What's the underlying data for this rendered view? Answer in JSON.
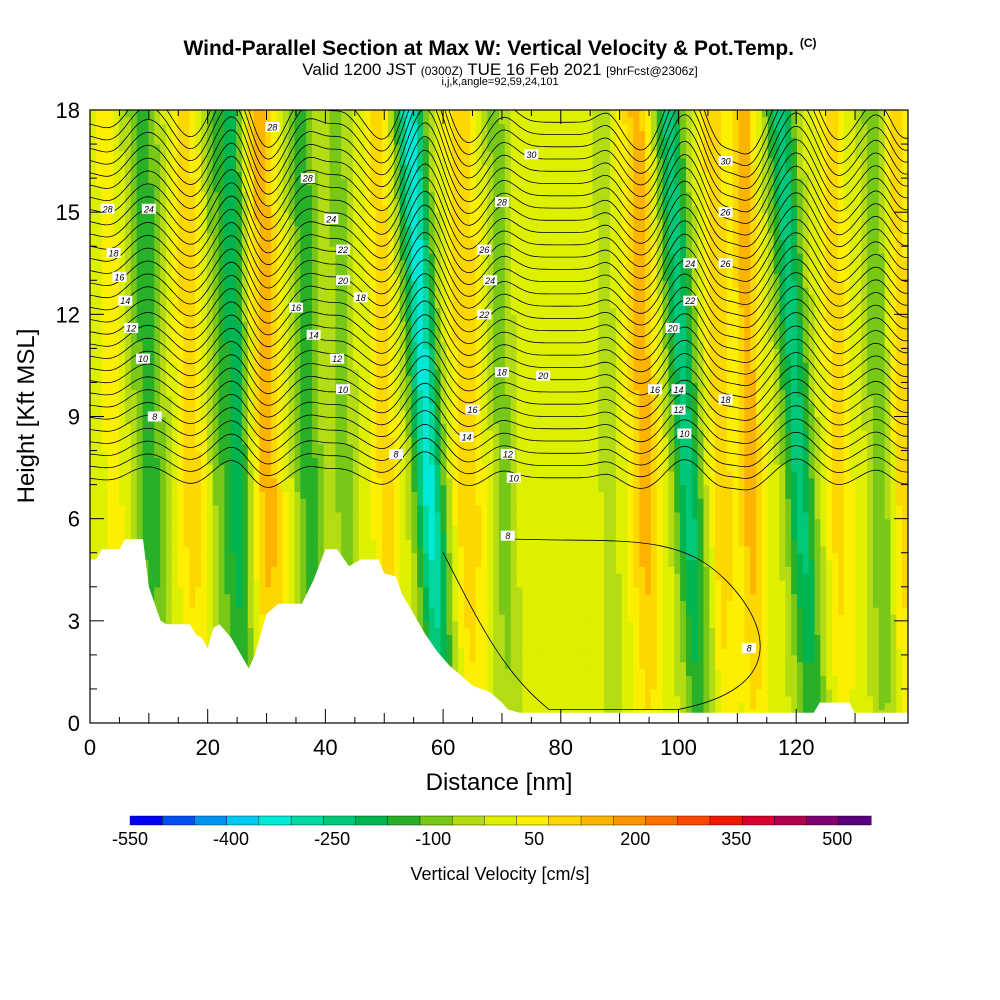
{
  "title": {
    "main": "Wind-Parallel Section at Max W: Vertical Velocity & Pot.Temp.",
    "copyright": "(C)",
    "valid": "Valid 1200 JST",
    "utc": "(0300Z)",
    "date": "TUE 16 Feb 2021",
    "forecast": "[9hrFcst@2306z]",
    "indices": "i,j,k,angle=92,59,24,101"
  },
  "chart_data": {
    "type": "heatmap",
    "xlabel": "Distance [nm]",
    "ylabel": "Height [Kft MSL]",
    "xlim": [
      0,
      139
    ],
    "ylim": [
      0,
      18
    ],
    "x_ticks": [
      0,
      20,
      40,
      60,
      80,
      100,
      120
    ],
    "y_ticks": [
      0,
      3,
      6,
      9,
      12,
      15,
      18
    ],
    "colorbar": {
      "title": "Vertical Velocity [cm/s]",
      "labels": [
        "-550",
        "-400",
        "-250",
        "-100",
        "50",
        "200",
        "350",
        "500"
      ],
      "levels": [
        -550,
        -500,
        -450,
        -400,
        -350,
        -300,
        -250,
        -200,
        -150,
        -100,
        -50,
        0,
        50,
        100,
        150,
        200,
        250,
        300,
        350,
        400,
        450,
        500,
        550
      ],
      "colors": [
        "#0000f5",
        "#0050f0",
        "#0090f0",
        "#00c8f0",
        "#00e8d8",
        "#00d8a0",
        "#00c878",
        "#00b450",
        "#28b028",
        "#78c818",
        "#b4dc14",
        "#dcf000",
        "#fcf000",
        "#fcd800",
        "#fcb400",
        "#fc9400",
        "#fc7000",
        "#f84800",
        "#f01800",
        "#d80030",
        "#b00050",
        "#800070",
        "#580080"
      ]
    },
    "vertical_velocity_bands": [
      {
        "x": 4,
        "w": 50,
        "width": 2
      },
      {
        "x": 10,
        "w": -150,
        "width": 3
      },
      {
        "x": 17,
        "w": 100,
        "width": 2.5
      },
      {
        "x": 22,
        "w": -100,
        "width": 2
      },
      {
        "x": 25,
        "w": -200,
        "width": 2
      },
      {
        "x": 30,
        "w": 150,
        "width": 2.5
      },
      {
        "x": 37,
        "w": -150,
        "width": 2.5
      },
      {
        "x": 43,
        "w": -100,
        "width": 2
      },
      {
        "x": 50,
        "w": 100,
        "width": 2
      },
      {
        "x": 57,
        "w": -350,
        "width": 2.5
      },
      {
        "x": 64,
        "w": 120,
        "width": 2.5
      },
      {
        "x": 70,
        "w": -100,
        "width": 2
      },
      {
        "x": 88,
        "w": -60,
        "width": 1.5
      },
      {
        "x": 94,
        "w": 150,
        "width": 2.5
      },
      {
        "x": 101,
        "w": -250,
        "width": 2.5
      },
      {
        "x": 107,
        "w": 120,
        "width": 2
      },
      {
        "x": 112,
        "w": 150,
        "width": 2
      },
      {
        "x": 120,
        "w": -250,
        "width": 2.5
      },
      {
        "x": 127,
        "w": 100,
        "width": 2
      },
      {
        "x": 134,
        "w": -120,
        "width": 2
      },
      {
        "x": 138,
        "w": 100,
        "width": 2
      }
    ],
    "terrain": [
      [
        0,
        4.8
      ],
      [
        1,
        4.8
      ],
      [
        2,
        5.1
      ],
      [
        5,
        5.1
      ],
      [
        6,
        5.4
      ],
      [
        9,
        5.4
      ],
      [
        10,
        4.0
      ],
      [
        12,
        3.0
      ],
      [
        13,
        2.9
      ],
      [
        17,
        2.9
      ],
      [
        18,
        2.6
      ],
      [
        19,
        2.5
      ],
      [
        20,
        2.2
      ],
      [
        21,
        2.8
      ],
      [
        22,
        2.9
      ],
      [
        23,
        2.7
      ],
      [
        24,
        2.5
      ],
      [
        25,
        2.2
      ],
      [
        26,
        1.9
      ],
      [
        27,
        1.6
      ],
      [
        28,
        2.0
      ],
      [
        29,
        2.6
      ],
      [
        30,
        3.2
      ],
      [
        32,
        3.5
      ],
      [
        36,
        3.5
      ],
      [
        38,
        4.2
      ],
      [
        40,
        5.1
      ],
      [
        42,
        5.1
      ],
      [
        44,
        4.6
      ],
      [
        46,
        4.8
      ],
      [
        49,
        4.8
      ],
      [
        50,
        4.4
      ],
      [
        52,
        4.3
      ],
      [
        53,
        3.8
      ],
      [
        55,
        3.2
      ],
      [
        57,
        2.6
      ],
      [
        59,
        2.1
      ],
      [
        61,
        1.7
      ],
      [
        63,
        1.4
      ],
      [
        65,
        1.1
      ],
      [
        68,
        0.9
      ],
      [
        70,
        0.6
      ],
      [
        71,
        0.4
      ],
      [
        73,
        0.3
      ],
      [
        123,
        0.3
      ],
      [
        124,
        0.6
      ],
      [
        129,
        0.6
      ],
      [
        130,
        0.3
      ],
      [
        139,
        0.3
      ]
    ],
    "theta_contour_labels": [
      {
        "x": 31,
        "y": 17.5,
        "text": "28"
      },
      {
        "x": 37,
        "y": 16.0,
        "text": "28"
      },
      {
        "x": 3,
        "y": 15.1,
        "text": "28"
      },
      {
        "x": 10,
        "y": 15.1,
        "text": "24"
      },
      {
        "x": 41,
        "y": 14.8,
        "text": "24"
      },
      {
        "x": 43,
        "y": 13.9,
        "text": "22"
      },
      {
        "x": 43,
        "y": 13.0,
        "text": "20"
      },
      {
        "x": 46,
        "y": 12.5,
        "text": "18"
      },
      {
        "x": 4,
        "y": 13.8,
        "text": "18"
      },
      {
        "x": 5,
        "y": 13.1,
        "text": "16"
      },
      {
        "x": 6,
        "y": 12.4,
        "text": "14"
      },
      {
        "x": 7,
        "y": 11.6,
        "text": "12"
      },
      {
        "x": 9,
        "y": 10.7,
        "text": "10"
      },
      {
        "x": 11,
        "y": 9.0,
        "text": "8"
      },
      {
        "x": 35,
        "y": 12.2,
        "text": "16"
      },
      {
        "x": 38,
        "y": 11.4,
        "text": "14"
      },
      {
        "x": 42,
        "y": 10.7,
        "text": "12"
      },
      {
        "x": 43,
        "y": 9.8,
        "text": "10"
      },
      {
        "x": 52,
        "y": 7.9,
        "text": "8"
      },
      {
        "x": 75,
        "y": 16.7,
        "text": "30"
      },
      {
        "x": 70,
        "y": 15.3,
        "text": "28"
      },
      {
        "x": 67,
        "y": 13.9,
        "text": "26"
      },
      {
        "x": 68,
        "y": 13.0,
        "text": "24"
      },
      {
        "x": 67,
        "y": 12.0,
        "text": "22"
      },
      {
        "x": 70,
        "y": 10.3,
        "text": "18"
      },
      {
        "x": 77,
        "y": 10.2,
        "text": "20"
      },
      {
        "x": 65,
        "y": 9.2,
        "text": "16"
      },
      {
        "x": 64,
        "y": 8.4,
        "text": "14"
      },
      {
        "x": 71,
        "y": 7.9,
        "text": "12"
      },
      {
        "x": 72,
        "y": 7.2,
        "text": "10"
      },
      {
        "x": 71,
        "y": 5.5,
        "text": "8"
      },
      {
        "x": 108,
        "y": 16.5,
        "text": "30"
      },
      {
        "x": 108,
        "y": 15.0,
        "text": "26"
      },
      {
        "x": 102,
        "y": 13.5,
        "text": "24"
      },
      {
        "x": 108,
        "y": 13.5,
        "text": "26"
      },
      {
        "x": 102,
        "y": 12.4,
        "text": "22"
      },
      {
        "x": 99,
        "y": 11.6,
        "text": "20"
      },
      {
        "x": 96,
        "y": 9.8,
        "text": "16"
      },
      {
        "x": 100,
        "y": 9.8,
        "text": "14"
      },
      {
        "x": 108,
        "y": 9.5,
        "text": "18"
      },
      {
        "x": 100,
        "y": 9.2,
        "text": "12"
      },
      {
        "x": 101,
        "y": 8.5,
        "text": "10"
      },
      {
        "x": 112,
        "y": 2.2,
        "text": "8"
      }
    ]
  }
}
